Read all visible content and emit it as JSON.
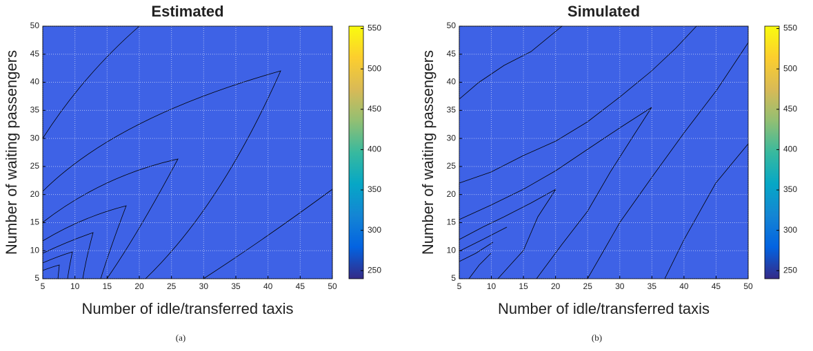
{
  "chart_data": [
    {
      "type": "contour",
      "title": "Estimated",
      "xlabel": "Number of idle/transferred taxis",
      "ylabel": "Number of waiting passengers",
      "caption": "(a)",
      "xlim": [
        5,
        50
      ],
      "ylim": [
        5,
        50
      ],
      "xticks": [
        5,
        10,
        15,
        20,
        25,
        30,
        35,
        40,
        45,
        50
      ],
      "yticks": [
        5,
        10,
        15,
        20,
        25,
        30,
        35,
        40,
        45,
        50
      ],
      "grid": true,
      "colorbar": {
        "lim": [
          240,
          553
        ],
        "ticks": [
          250,
          300,
          350,
          400,
          450,
          500,
          550
        ],
        "colormap": [
          "#352a87",
          "#0363e1",
          "#1485d4",
          "#06a7c6",
          "#38b99e",
          "#92bf73",
          "#d9ba56",
          "#fcce2e",
          "#f9fb0e"
        ]
      }
    },
    {
      "type": "contour",
      "title": "Simulated",
      "xlabel": "Number of idle/transferred taxis",
      "ylabel": "Number of waiting passengers",
      "caption": "(b)",
      "xlim": [
        5,
        50
      ],
      "ylim": [
        5,
        50
      ],
      "xticks": [
        5,
        10,
        15,
        20,
        25,
        30,
        35,
        40,
        45,
        50
      ],
      "yticks": [
        5,
        10,
        15,
        20,
        25,
        30,
        35,
        40,
        45,
        50
      ],
      "grid": true,
      "colorbar": {
        "lim": [
          240,
          553
        ],
        "ticks": [
          250,
          300,
          350,
          400,
          450,
          500,
          550
        ],
        "colormap": [
          "#352a87",
          "#0363e1",
          "#1485d4",
          "#06a7c6",
          "#38b99e",
          "#92bf73",
          "#d9ba56",
          "#fcce2e",
          "#f9fb0e"
        ]
      }
    }
  ]
}
